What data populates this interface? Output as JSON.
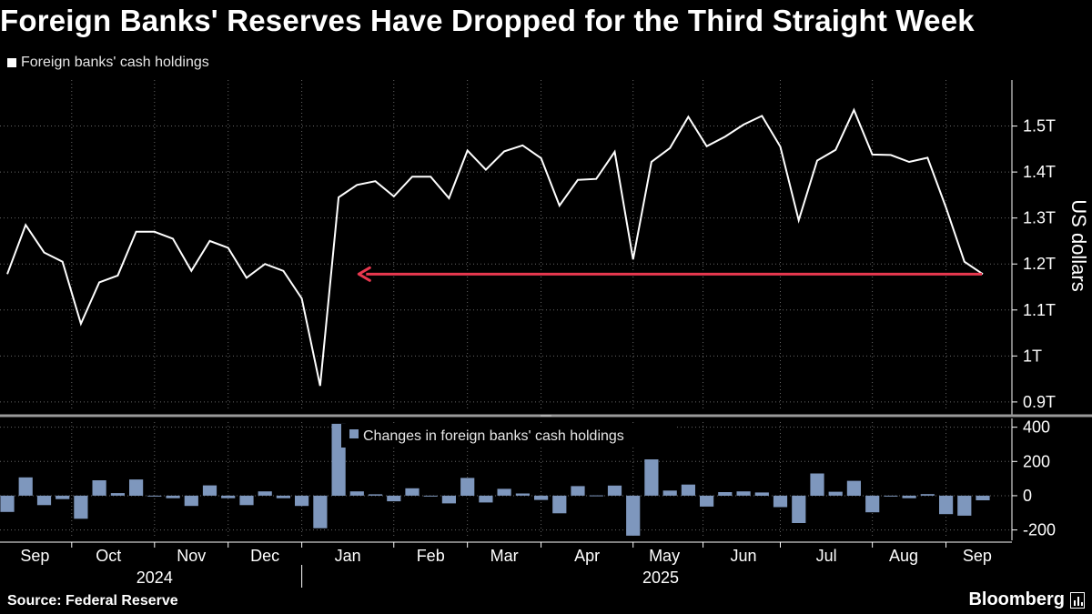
{
  "title": "Foreign Banks' Reserves Have Dropped for the Third Straight Week",
  "source": "Source: Federal Reserve",
  "brand": "Bloomberg",
  "colors": {
    "line": "#ffffff",
    "bar": "#7e97bd",
    "arrow": "#e8384f",
    "grid": "#666666",
    "background": "#000000"
  },
  "chart_data": [
    {
      "type": "line",
      "legend": "Foreign banks' cash holdings",
      "ylabel": "US dollars",
      "ylim": [
        0.88,
        1.6
      ],
      "yticks": [
        0.9,
        1.0,
        1.1,
        1.2,
        1.3,
        1.4,
        1.5
      ],
      "ytick_labels": [
        "0.9T",
        "1T",
        "1.1T",
        "1.2T",
        "1.3T",
        "1.4T",
        "1.5T"
      ],
      "grid": true,
      "x_range": [
        0,
        54
      ],
      "values": [
        1.178,
        1.285,
        1.225,
        1.205,
        1.07,
        1.16,
        1.175,
        1.27,
        1.27,
        1.255,
        1.185,
        1.25,
        1.235,
        1.17,
        1.2,
        1.185,
        1.125,
        0.935,
        1.345,
        1.372,
        1.38,
        1.347,
        1.39,
        1.39,
        1.343,
        1.447,
        1.405,
        1.445,
        1.458,
        1.43,
        1.327,
        1.383,
        1.385,
        1.444,
        1.21,
        1.422,
        1.452,
        1.52,
        1.456,
        1.477,
        1.503,
        1.522,
        1.455,
        1.295,
        1.425,
        1.448,
        1.535,
        1.438,
        1.437,
        1.422,
        1.431,
        1.323,
        1.205,
        1.178
      ],
      "annotation": {
        "type": "arrow",
        "from_x": 53,
        "to_x": 19,
        "y": 1.178
      }
    },
    {
      "type": "bar",
      "legend": "Changes in foreign banks' cash holdings",
      "ylim": [
        -250,
        430
      ],
      "yticks": [
        -200,
        0,
        200,
        400
      ],
      "ytick_labels": [
        "-200",
        "0",
        "200",
        "400"
      ],
      "grid": true,
      "values": [
        -95,
        107,
        -55,
        -20,
        -135,
        90,
        15,
        95,
        0,
        -15,
        -60,
        60,
        -15,
        -55,
        25,
        -15,
        -60,
        -190,
        420,
        25,
        8,
        -33,
        43,
        0,
        -45,
        104,
        -40,
        40,
        13,
        -25,
        -103,
        56,
        2,
        59,
        -234,
        212,
        30,
        65,
        -64,
        21,
        25,
        19,
        -67,
        -160,
        130,
        23,
        87,
        -97,
        -1,
        -15,
        9,
        -108,
        -117,
        -27
      ]
    }
  ],
  "x_axis": {
    "months": [
      {
        "label": "Sep",
        "pos": 1.5
      },
      {
        "label": "Oct",
        "pos": 5.5
      },
      {
        "label": "Nov",
        "pos": 10
      },
      {
        "label": "Dec",
        "pos": 14
      },
      {
        "label": "Jan",
        "pos": 18.5
      },
      {
        "label": "Feb",
        "pos": 23
      },
      {
        "label": "Mar",
        "pos": 27
      },
      {
        "label": "Apr",
        "pos": 31.5
      },
      {
        "label": "May",
        "pos": 35.7
      },
      {
        "label": "Jun",
        "pos": 40
      },
      {
        "label": "Jul",
        "pos": 44.5
      },
      {
        "label": "Aug",
        "pos": 48.7
      },
      {
        "label": "Sep",
        "pos": 52.7
      }
    ],
    "month_ticks": [
      3.5,
      8,
      12,
      16,
      21,
      25,
      29,
      34,
      37.8,
      42,
      47,
      51
    ],
    "years": [
      {
        "label": "2024",
        "pos": 8
      },
      {
        "label": "2025",
        "pos": 35.5
      }
    ],
    "year_divider": 16
  }
}
